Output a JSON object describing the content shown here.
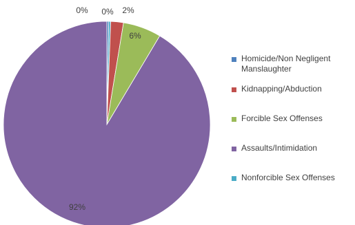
{
  "chart_data": {
    "type": "pie",
    "categories": [
      "Homicide/Non Negligent Manslaughter",
      "Kidnapping/Abduction",
      "Forcible Sex Offenses",
      "Assaults/Intimidation",
      "Nonforcible Sex Offenses"
    ],
    "values": [
      0.3,
      2,
      6,
      92,
      0.3
    ],
    "data_labels": [
      "0%",
      "2%",
      "6%",
      "92%",
      "0%"
    ],
    "colors": [
      "#4F81BD",
      "#C0504D",
      "#9BBB59",
      "#8064A2",
      "#4BACC6"
    ],
    "legend_position": "right"
  }
}
